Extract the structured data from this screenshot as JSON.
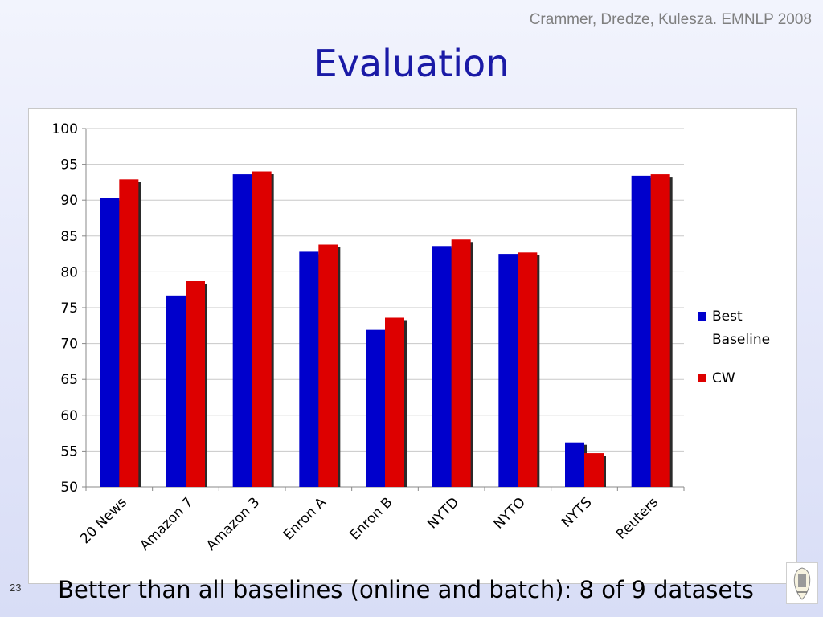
{
  "slide": {
    "citation": "Crammer, Dredze, Kulesza. EMNLP 2008",
    "title": "Evaluation",
    "caption": "Better than all baselines (online and batch): 8 of 9 datasets",
    "page_number": "23"
  },
  "colors": {
    "best_baseline": "#0000cc",
    "cw": "#dd0000",
    "title": "#1a1aa6"
  },
  "chart_data": {
    "type": "bar",
    "categories": [
      "20 News",
      "Amazon 7",
      "Amazon 3",
      "Enron A",
      "Enron B",
      "NYTD",
      "NYTO",
      "NYTS",
      "Reuters"
    ],
    "series": [
      {
        "name": "Best Baseline",
        "values": [
          90.3,
          76.7,
          93.6,
          82.8,
          71.9,
          83.6,
          82.5,
          56.2,
          93.4
        ]
      },
      {
        "name": "CW",
        "values": [
          92.9,
          78.7,
          94.0,
          83.8,
          73.6,
          84.5,
          82.7,
          54.7,
          93.6
        ]
      }
    ],
    "legend_lines": [
      [
        "Best",
        "Baseline"
      ],
      [
        "CW"
      ]
    ],
    "yticks": [
      "50",
      "55",
      "60",
      "65",
      "70",
      "75",
      "80",
      "85",
      "90",
      "95",
      "100"
    ],
    "ylim": [
      50,
      100
    ],
    "grid": true,
    "legend_position": "right"
  }
}
